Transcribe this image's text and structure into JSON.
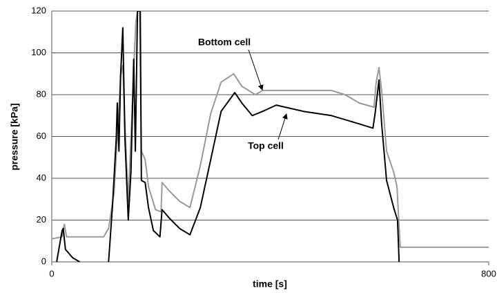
{
  "chart_data": {
    "type": "line",
    "x_label": "time [s]",
    "y_label": "pressure [kPa]",
    "xlim": [
      0,
      800
    ],
    "xticks": [
      0,
      800
    ],
    "ylim": [
      0,
      120
    ],
    "yticks": [
      0,
      20,
      40,
      60,
      80,
      100,
      120
    ],
    "grid": true,
    "series": [
      {
        "name": "Bottom cell",
        "color": "#999999",
        "x": [
          0,
          19,
          23,
          27,
          95,
          104,
          114,
          120,
          126,
          130,
          135,
          140,
          145,
          150,
          154,
          157,
          161,
          164,
          171,
          177,
          190,
          200,
          202,
          215,
          234,
          253,
          272,
          291,
          310,
          333,
          348,
          373,
          386,
          411,
          461,
          512,
          537,
          563,
          590,
          594,
          599,
          604,
          613,
          626,
          632,
          638,
          800
        ],
        "values": [
          11,
          12,
          18,
          12,
          12,
          16,
          33,
          59,
          89,
          94,
          59,
          29,
          59,
          92,
          115,
          120,
          120,
          53,
          49,
          36,
          25,
          24,
          38,
          34,
          29,
          26,
          46,
          71,
          86,
          90,
          84,
          80,
          82,
          82,
          82,
          82,
          80,
          76,
          74,
          86,
          93,
          82,
          53,
          43,
          36,
          7,
          7
        ]
      },
      {
        "name": "Top cell",
        "color": "#000000",
        "x": [
          9,
          19,
          21,
          25,
          38,
          51,
          80,
          104,
          111,
          118,
          120,
          123,
          126,
          130,
          134,
          140,
          145,
          150,
          153,
          157,
          162,
          164,
          171,
          177,
          186,
          198,
          202,
          215,
          234,
          253,
          272,
          291,
          310,
          335,
          348,
          367,
          386,
          411,
          461,
          512,
          563,
          588,
          592,
          599,
          604,
          613,
          626,
          633,
          636
        ],
        "values": [
          0,
          15,
          16,
          6,
          2,
          0,
          null,
          0,
          26,
          59,
          76,
          53,
          89,
          112,
          59,
          20,
          43,
          97,
          53,
          120,
          120,
          39,
          38,
          26,
          15,
          12,
          25,
          21,
          16,
          13,
          26,
          49,
          72,
          81,
          76,
          70,
          72,
          75,
          72,
          70,
          66,
          64,
          71,
          87,
          66,
          39,
          26,
          20,
          0
        ]
      }
    ],
    "annotations": [
      {
        "text": "Bottom cell"
      },
      {
        "text": "Top cell"
      }
    ]
  }
}
